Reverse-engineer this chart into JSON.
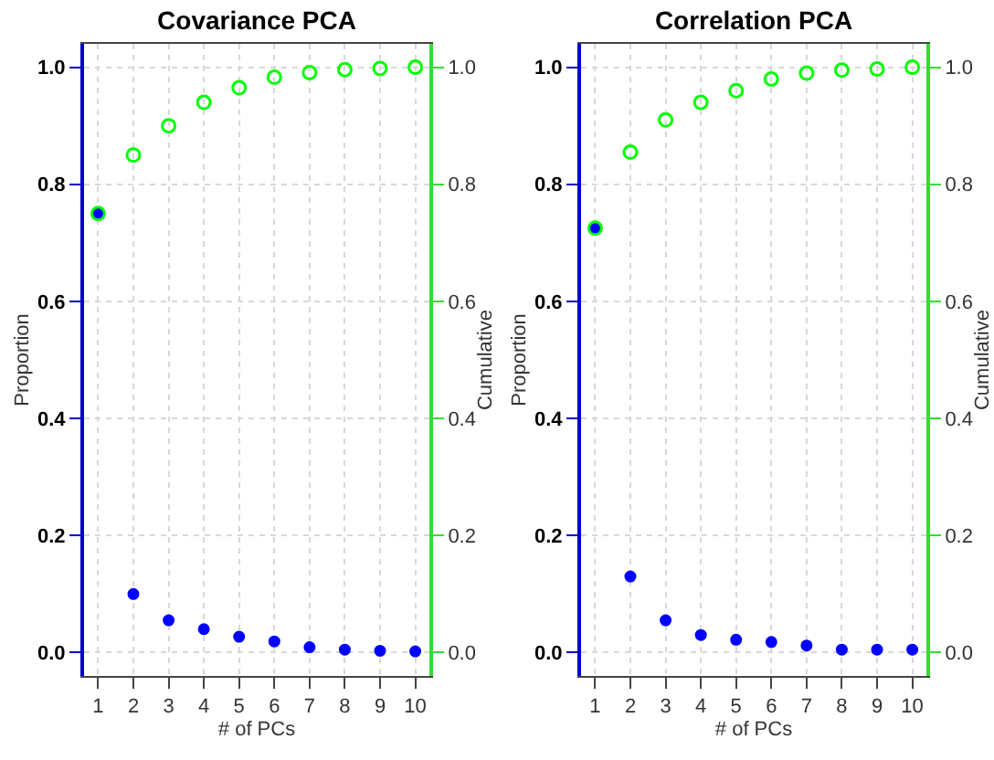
{
  "chart_data": [
    {
      "type": "scatter",
      "title": "Covariance PCA",
      "xlabel": "# of PCs",
      "ylabel": "Proportion",
      "y2label": "Cumulative",
      "x": [
        1,
        2,
        3,
        4,
        5,
        6,
        7,
        8,
        9,
        10
      ],
      "xlim": [
        0.6,
        10.4
      ],
      "xticks": [
        1,
        2,
        3,
        4,
        5,
        6,
        7,
        8,
        9,
        10
      ],
      "ylim": [
        -0.04,
        1.04
      ],
      "yticks": [
        {
          "value": 0,
          "label": "0.0"
        },
        {
          "value": 0.2,
          "label": "0.2"
        },
        {
          "value": 0.4,
          "label": "0.4"
        },
        {
          "value": 0.6,
          "label": "0.6"
        },
        {
          "value": 0.8,
          "label": "0.8"
        },
        {
          "value": 1,
          "label": "1.0"
        }
      ],
      "y2lim": [
        -0.04,
        1.04
      ],
      "y2ticks": [
        {
          "value": 0,
          "label": "0.0"
        },
        {
          "value": 0.2,
          "label": "0.2"
        },
        {
          "value": 0.4,
          "label": "0.4"
        },
        {
          "value": 0.6,
          "label": "0.6"
        },
        {
          "value": 0.8,
          "label": "0.8"
        },
        {
          "value": 1,
          "label": "1.0"
        }
      ],
      "grid": true,
      "marker": "circle",
      "series": [
        {
          "color": "#0000ff",
          "values": [
            0.75,
            0.1,
            0.055,
            0.04,
            0.027,
            0.019,
            0.009,
            0.005,
            0.003,
            0.002
          ]
        },
        {
          "color": "#00ff00",
          "axis": "y2",
          "values": [
            0.75,
            0.85,
            0.9,
            0.94,
            0.965,
            0.983,
            0.991,
            0.996,
            0.998,
            1.0
          ]
        }
      ]
    },
    {
      "type": "scatter",
      "title": "Correlation PCA",
      "xlabel": "# of PCs",
      "ylabel": "Proportion",
      "y2label": "Cumulative",
      "x": [
        1,
        2,
        3,
        4,
        5,
        6,
        7,
        8,
        9,
        10
      ],
      "xlim": [
        0.6,
        10.4
      ],
      "xticks": [
        1,
        2,
        3,
        4,
        5,
        6,
        7,
        8,
        9,
        10
      ],
      "ylim": [
        -0.04,
        1.04
      ],
      "yticks": [
        {
          "value": 0,
          "label": "0.0"
        },
        {
          "value": 0.2,
          "label": "0.2"
        },
        {
          "value": 0.4,
          "label": "0.4"
        },
        {
          "value": 0.6,
          "label": "0.6"
        },
        {
          "value": 0.8,
          "label": "0.8"
        },
        {
          "value": 1,
          "label": "1.0"
        }
      ],
      "y2lim": [
        -0.04,
        1.04
      ],
      "y2ticks": [
        {
          "value": 0,
          "label": "0.0"
        },
        {
          "value": 0.2,
          "label": "0.2"
        },
        {
          "value": 0.4,
          "label": "0.4"
        },
        {
          "value": 0.6,
          "label": "0.6"
        },
        {
          "value": 0.8,
          "label": "0.8"
        },
        {
          "value": 1,
          "label": "1.0"
        }
      ],
      "grid": true,
      "marker": "circle",
      "series": [
        {
          "color": "#0000ff",
          "values": [
            0.725,
            0.13,
            0.055,
            0.03,
            0.022,
            0.018,
            0.012,
            0.005,
            0.005,
            0.005
          ]
        },
        {
          "color": "#00ff00",
          "axis": "y2",
          "values": [
            0.725,
            0.855,
            0.91,
            0.94,
            0.96,
            0.98,
            0.99,
            0.995,
            0.997,
            1.0
          ]
        }
      ]
    }
  ]
}
